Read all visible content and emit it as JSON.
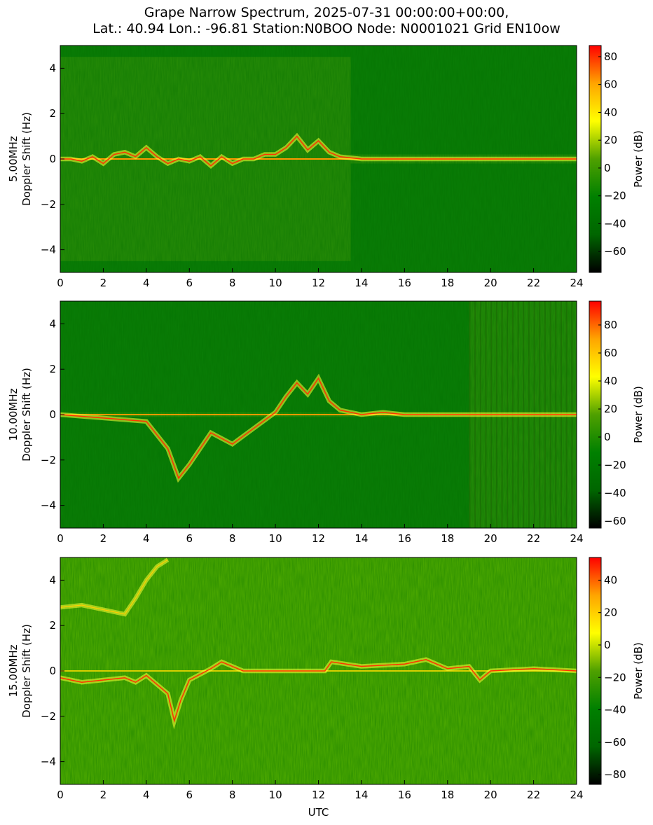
{
  "figure": {
    "title_line_1": "Grape Narrow Spectrum, 2025-07-31 00:00:00+00:00,",
    "title_line_2": "Lat.: 40.94 Lon.: -96.81 Station:N0BOO Node: N0001021 Grid EN10ow"
  },
  "colors": {
    "colormap": [
      "#000000",
      "#006600",
      "#008000",
      "#4fa000",
      "#ffff00",
      "#ffa500",
      "#ff0000"
    ],
    "background_green": "#0a7d06"
  },
  "chart_data": [
    {
      "type": "heatmap",
      "band": "5.00MHz",
      "ylabel": "Doppler Shift (Hz)",
      "xlabel": "",
      "xlim": [
        0,
        24
      ],
      "ylim": [
        -5,
        5
      ],
      "x_ticks": [
        0,
        2,
        4,
        6,
        8,
        10,
        12,
        14,
        16,
        18,
        20,
        22,
        24
      ],
      "y_ticks": [
        -4,
        -2,
        0,
        2,
        4
      ],
      "colorbar": {
        "label": "Power (dB)",
        "range": [
          -75,
          88
        ],
        "ticks": [
          -60,
          -40,
          -20,
          0,
          20,
          40,
          60,
          80
        ]
      },
      "carrier_trace": {
        "x": [
          0,
          0.5,
          1,
          1.5,
          2,
          2.5,
          3,
          3.5,
          4,
          4.5,
          5,
          5.5,
          6,
          6.5,
          7,
          7.5,
          8,
          8.5,
          9,
          9.5,
          10,
          10.5,
          11,
          11.5,
          12,
          12.5,
          13,
          14,
          16,
          18,
          20,
          22,
          24
        ],
        "y": [
          0,
          0,
          -0.1,
          0.1,
          -0.2,
          0.2,
          0.3,
          0.1,
          0.5,
          0.1,
          -0.2,
          0,
          -0.1,
          0.1,
          -0.3,
          0.1,
          -0.2,
          0,
          0,
          0.2,
          0.2,
          0.5,
          1.0,
          0.4,
          0.8,
          0.3,
          0.1,
          0,
          0,
          0,
          0,
          0,
          0
        ]
      },
      "activity": [
        {
          "x": [
            0,
            13.5
          ],
          "spread": [
            -4.5,
            4.5
          ]
        },
        {
          "x": [
            13.5,
            24
          ],
          "spread": [
            -0.2,
            0.2
          ]
        }
      ]
    },
    {
      "type": "heatmap",
      "band": "10.00MHz",
      "ylabel": "Doppler Shift (Hz)",
      "xlabel": "",
      "xlim": [
        0,
        24
      ],
      "ylim": [
        -5,
        5
      ],
      "x_ticks": [
        0,
        2,
        4,
        6,
        8,
        10,
        12,
        14,
        16,
        18,
        20,
        22,
        24
      ],
      "y_ticks": [
        -4,
        -2,
        0,
        2,
        4
      ],
      "colorbar": {
        "label": "Power (dB)",
        "range": [
          -65,
          97
        ],
        "ticks": [
          -60,
          -40,
          -20,
          0,
          20,
          40,
          60,
          80
        ]
      },
      "carrier_trace": {
        "x": [
          0,
          4,
          5,
          5.5,
          6,
          7,
          8,
          9,
          10,
          10.5,
          11,
          11.5,
          12,
          12.5,
          13,
          14,
          15,
          16,
          18,
          20,
          24
        ],
        "y": [
          0,
          -0.3,
          -1.5,
          -2.8,
          -2.2,
          -0.8,
          -1.3,
          -0.6,
          0.1,
          0.8,
          1.4,
          0.9,
          1.6,
          0.6,
          0.2,
          0,
          0.1,
          0,
          0,
          0,
          0
        ]
      },
      "activity": [
        {
          "x": [
            0,
            24
          ],
          "spread": [
            -0.1,
            0.1
          ]
        },
        {
          "x": [
            19,
            24
          ],
          "spread": [
            -5,
            5
          ]
        }
      ]
    },
    {
      "type": "heatmap",
      "band": "15.00MHz",
      "ylabel": "Doppler Shift (Hz)",
      "xlabel": "UTC",
      "xlim": [
        0,
        24
      ],
      "ylim": [
        -5,
        5
      ],
      "x_ticks": [
        0,
        2,
        4,
        6,
        8,
        10,
        12,
        14,
        16,
        18,
        20,
        22,
        24
      ],
      "y_ticks": [
        -4,
        -2,
        0,
        2,
        4
      ],
      "colorbar": {
        "label": "Power (dB)",
        "range": [
          -86,
          54
        ],
        "ticks": [
          -80,
          -60,
          -40,
          -20,
          0,
          20,
          40
        ]
      },
      "carrier_trace": {
        "x": [
          0,
          1,
          2,
          3,
          3.5,
          4,
          4.5,
          5,
          5.3,
          5.6,
          6,
          7,
          7.5,
          8,
          8.5,
          12.3,
          12.6,
          14,
          16,
          17,
          18,
          19,
          19.5,
          20,
          22,
          24
        ],
        "y": [
          -0.3,
          -0.5,
          -0.4,
          -0.3,
          -0.5,
          -0.2,
          -0.6,
          -1.0,
          -2.2,
          -1.3,
          -0.4,
          0.1,
          0.4,
          0.2,
          0,
          0,
          0.4,
          0.2,
          0.3,
          0.5,
          0.1,
          0.2,
          -0.4,
          0,
          0.1,
          0
        ]
      },
      "secondary_trace": {
        "x": [
          0,
          1,
          2,
          3,
          3.5,
          4,
          4.5,
          5
        ],
        "y": [
          2.8,
          2.9,
          2.7,
          2.5,
          3.2,
          4.0,
          4.6,
          4.9
        ]
      },
      "activity": [
        {
          "x": [
            0,
            24
          ],
          "spread": [
            -5,
            5
          ]
        }
      ]
    }
  ]
}
